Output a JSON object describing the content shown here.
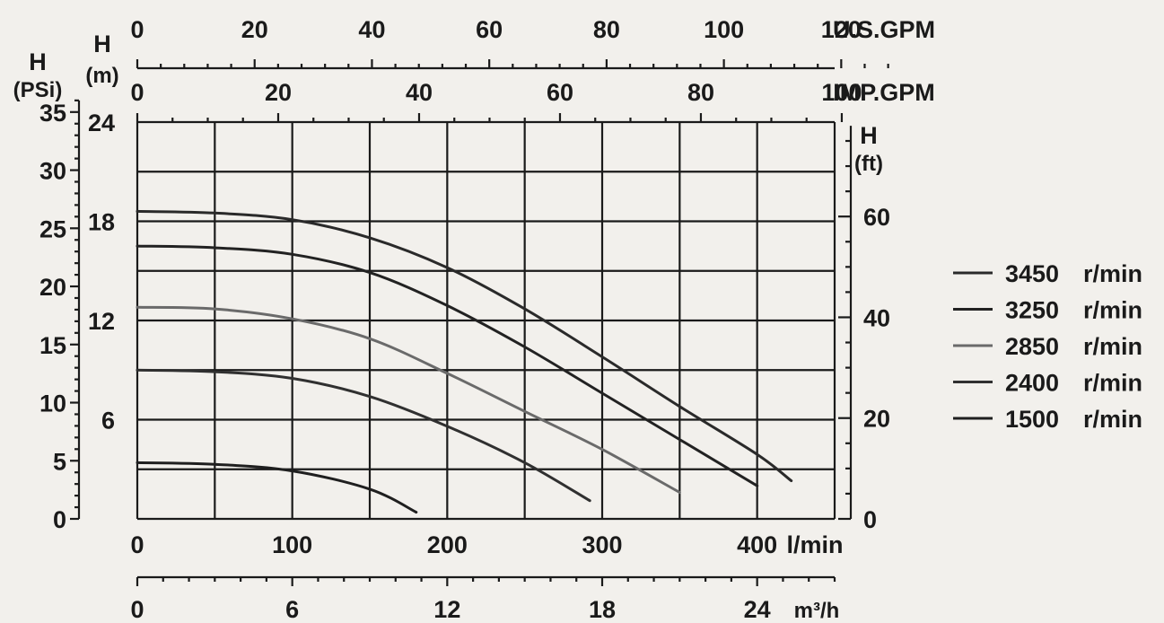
{
  "chart_data": {
    "type": "line",
    "title": "",
    "x": {
      "label": "l/min",
      "range": [
        0,
        450
      ],
      "ticks": [
        0,
        100,
        200,
        300,
        400
      ],
      "tick_labels": [
        "0",
        "100",
        "200",
        "300",
        "400"
      ],
      "grid_step": 50
    },
    "x_m3h": {
      "label": "m³/h",
      "ticks": [
        0,
        6,
        12,
        18,
        24
      ],
      "tick_labels": [
        "0",
        "6",
        "12",
        "18",
        "24"
      ]
    },
    "x_usgpm": {
      "label": "U.S.GPM",
      "ticks": [
        0,
        20,
        40,
        60,
        80,
        100,
        120
      ],
      "tick_labels": [
        "0",
        "20",
        "40",
        "60",
        "80",
        "100",
        "120"
      ]
    },
    "x_impgpm": {
      "label": "IMP.GPM",
      "ticks": [
        0,
        20,
        40,
        60,
        80,
        100
      ],
      "tick_labels": [
        "0",
        "20",
        "40",
        "60",
        "80",
        "100"
      ]
    },
    "y": {
      "label_line1": "H",
      "label_line2": "(m)",
      "range": [
        0,
        24
      ],
      "ticks": [
        6,
        12,
        18,
        24
      ],
      "tick_labels": [
        "6",
        "12",
        "18",
        "24"
      ],
      "grid_step": 3
    },
    "y_psi": {
      "label_line1": "H",
      "label_line2": "(PSi)",
      "ticks": [
        0,
        5,
        10,
        15,
        20,
        25,
        30,
        35
      ],
      "tick_labels": [
        "0",
        "5",
        "10",
        "15",
        "20",
        "25",
        "30",
        "35"
      ]
    },
    "y_ft": {
      "label_line1": "H",
      "label_line2": "(ft)",
      "ticks": [
        0,
        20,
        40,
        60
      ],
      "tick_labels": [
        "0",
        "20",
        "40",
        "60"
      ]
    },
    "grid": true,
    "legend_position": "right",
    "series": [
      {
        "name": "3450",
        "unit": "r/min",
        "color": "#2a2a2a",
        "x": [
          0,
          50,
          100,
          150,
          200,
          250,
          300,
          350,
          400,
          422
        ],
        "y": [
          18.6,
          18.5,
          18.1,
          17.0,
          15.2,
          12.7,
          9.8,
          6.8,
          3.9,
          2.3
        ]
      },
      {
        "name": "3250",
        "unit": "r/min",
        "color": "#222222",
        "x": [
          0,
          50,
          100,
          150,
          200,
          250,
          300,
          350,
          400
        ],
        "y": [
          16.5,
          16.4,
          16.0,
          14.9,
          12.9,
          10.4,
          7.6,
          4.8,
          2.0
        ]
      },
      {
        "name": "2850",
        "unit": "r/min",
        "color": "#6a6a6a",
        "x": [
          0,
          50,
          100,
          150,
          200,
          250,
          300,
          350
        ],
        "y": [
          12.8,
          12.7,
          12.1,
          10.9,
          8.8,
          6.5,
          4.2,
          1.6
        ]
      },
      {
        "name": "2400",
        "unit": "r/min",
        "color": "#303030",
        "x": [
          0,
          50,
          100,
          150,
          200,
          250,
          292
        ],
        "y": [
          9.0,
          8.9,
          8.5,
          7.4,
          5.6,
          3.4,
          1.1
        ]
      },
      {
        "name": "1500",
        "unit": "r/min",
        "color": "#1f1f1f",
        "x": [
          0,
          50,
          100,
          150,
          180
        ],
        "y": [
          3.4,
          3.3,
          2.9,
          1.8,
          0.4
        ]
      }
    ]
  }
}
